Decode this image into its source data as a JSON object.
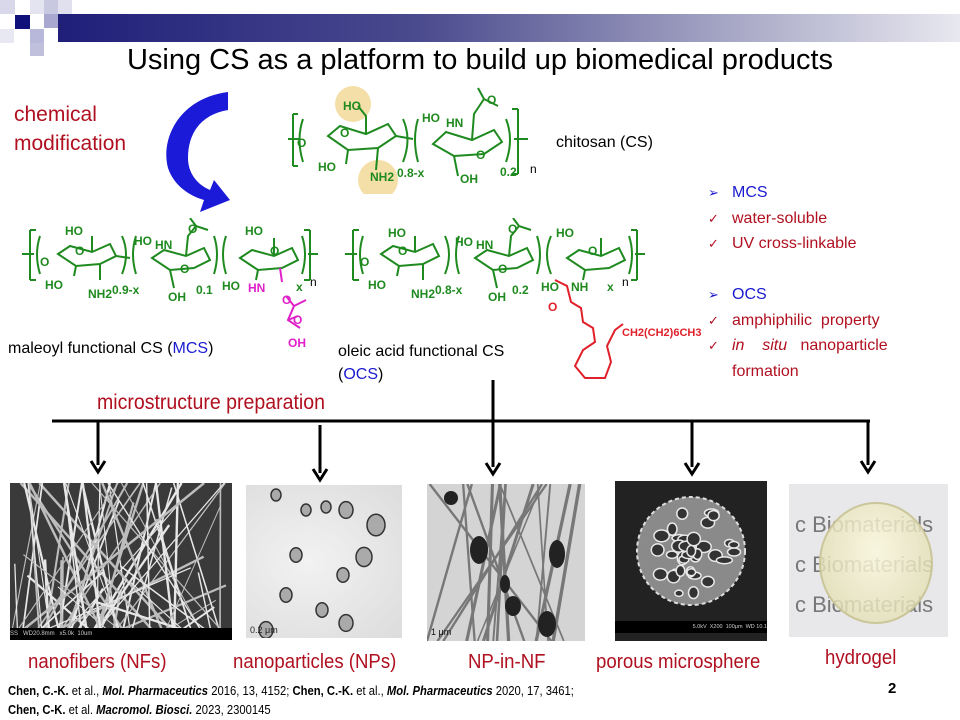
{
  "slide": {
    "title": "Using CS as a platform to build up biomedical products",
    "page_number": "2",
    "colors": {
      "accent_red": "#b01020",
      "accent_blue": "#1a1ad0",
      "chem_green": "#1f8a1f",
      "header_navy": "#1f1f7a"
    }
  },
  "left_note": {
    "line1": "chemical",
    "line2": "modification"
  },
  "chitosan": {
    "label": "chitosan (CS)",
    "atoms": [
      "HO",
      "O",
      "O",
      "HO",
      "NH2",
      "0.8-x",
      "HO",
      "HN",
      "O",
      "O",
      "OH",
      "0.2",
      "n"
    ]
  },
  "mcs": {
    "label_prefix": "maleoyl functional CS (",
    "label_abbr": "MCS",
    "label_suffix": ")",
    "atoms": [
      "HO",
      "O",
      "O",
      "HO",
      "NH2",
      "0.9-x",
      "HO",
      "HN",
      "O",
      "O",
      "OH",
      "0.1",
      "HO",
      "O",
      "HO",
      "HN",
      "O",
      "O",
      "OH",
      "x",
      "n"
    ]
  },
  "ocs": {
    "label_line1": "oleic acid functional CS",
    "label_open": "(",
    "label_abbr": "OCS",
    "label_close": ")",
    "atoms": [
      "HO",
      "O",
      "O",
      "HO",
      "NH2",
      "0.8-x",
      "HO",
      "HN",
      "O",
      "O",
      "OH",
      "0.2",
      "HO",
      "O",
      "HO",
      "NH",
      "O",
      "CH2(CH2)6CH3",
      "x",
      "n"
    ]
  },
  "properties": [
    {
      "bullet": "arrow",
      "text": "MCS",
      "style": "heading"
    },
    {
      "bullet": "check",
      "text": "water-soluble"
    },
    {
      "bullet": "check",
      "text": "UV cross-linkable"
    },
    {
      "bullet": "none",
      "text": ""
    },
    {
      "bullet": "arrow",
      "text": "OCS",
      "style": "heading"
    },
    {
      "bullet": "check",
      "text": "amphiphilic  property"
    },
    {
      "bullet": "check",
      "text_italic": "in    situ",
      "text": "   nanoparticle"
    },
    {
      "bullet": "none",
      "text": "formation"
    }
  ],
  "microstructure_label": "microstructure preparation",
  "products": [
    {
      "caption": "nanofibers (NFs)",
      "image": "SEM nanofibers",
      "scale_text": "SS   WD20.8mm   x5.0k  10um"
    },
    {
      "caption": "nanoparticles (NPs)",
      "image": "TEM nanoparticles",
      "scale_text": "0.2 μm"
    },
    {
      "caption": "NP-in-NF",
      "image": "TEM beaded fibers",
      "scale_text": "1 μm"
    },
    {
      "caption": "porous microsphere",
      "image": "SEM porous microsphere",
      "scale_text": "5.0kV  X200  100μm  WD 10.1"
    },
    {
      "caption": "hydrogel",
      "image": "hydrogel disc photo",
      "background_text": "c Biomaterials"
    }
  ],
  "citations": {
    "line1": [
      {
        "t": "Chen, C.-K.",
        "s": "b"
      },
      {
        "t": " et al., ",
        "s": "n"
      },
      {
        "t": "Mol. Pharmaceutics",
        "s": "bi"
      },
      {
        "t": " 2016, 13, 4152; ",
        "s": "n"
      },
      {
        "t": "Chen, C.-K.",
        "s": "b"
      },
      {
        "t": " et al., ",
        "s": "n"
      },
      {
        "t": "Mol. Pharmaceutics",
        "s": "bi"
      },
      {
        "t": " 2020, 17, 3461;",
        "s": "n"
      }
    ],
    "line2": [
      {
        "t": "Chen, C-K.",
        "s": "b"
      },
      {
        "t": " et al. ",
        "s": "n"
      },
      {
        "t": "Macromol. Biosci.",
        "s": "bi"
      },
      {
        "t": " 2023, 2300145",
        "s": "n"
      }
    ]
  }
}
